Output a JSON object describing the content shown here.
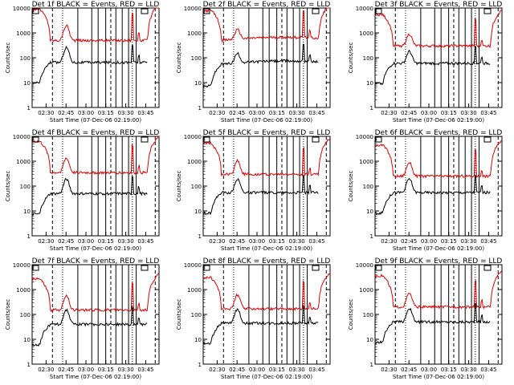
{
  "colors": {
    "events": "#000000",
    "lld": "#dd0000",
    "axes": "#000000"
  },
  "axis": {
    "ylabel": "Counts/sec",
    "xlabel": "Start Time (07-Dec-06 02:19:00)",
    "y_ticks": [
      "1",
      "10",
      "100",
      "1000",
      "10000"
    ],
    "x_ticks": [
      "02:30",
      "02:45",
      "03:00",
      "03:15",
      "03:30",
      "03:45"
    ]
  },
  "chart_data": [
    {
      "type": "line",
      "title": "Det 1f BLACK = Events, RED = LLD",
      "ylim": [
        1,
        10000
      ],
      "events_base": 65,
      "lld_base": 500,
      "peak": 3.0,
      "drift": 0.0
    },
    {
      "type": "line",
      "title": "Det 2f BLACK = Events, RED = LLD",
      "ylim": [
        1,
        10000
      ],
      "events_base": 55,
      "lld_base": 500,
      "peak": 1.4,
      "drift": 0.35
    },
    {
      "type": "line",
      "title": "Det 3f BLACK = Events, RED = LLD",
      "ylim": [
        1,
        10000
      ],
      "events_base": 60,
      "lld_base": 300,
      "peak": 2.0,
      "drift": 0.0
    },
    {
      "type": "line",
      "title": "Det 4f BLACK = Events, RED = LLD",
      "ylim": [
        1,
        10000
      ],
      "events_base": 50,
      "lld_base": 350,
      "peak": 2.8,
      "drift": 0.0
    },
    {
      "type": "line",
      "title": "Det 5f BLACK = Events, RED = LLD",
      "ylim": [
        1,
        10000
      ],
      "events_base": 55,
      "lld_base": 300,
      "peak": 2.5,
      "drift": 0.0
    },
    {
      "type": "line",
      "title": "Det 6f BLACK = Events, RED = LLD",
      "ylim": [
        1,
        10000
      ],
      "events_base": 55,
      "lld_base": 250,
      "peak": 2.6,
      "drift": 0.0
    },
    {
      "type": "line",
      "title": "Det 7f BLACK = Events, RED = LLD",
      "ylim": [
        1,
        10000
      ],
      "events_base": 40,
      "lld_base": 150,
      "peak": 2.8,
      "drift": 0.0
    },
    {
      "type": "line",
      "title": "Det 8f BLACK = Events, RED = LLD",
      "ylim": [
        1,
        10000
      ],
      "events_base": 45,
      "lld_base": 170,
      "peak": 2.6,
      "drift": 0.0
    },
    {
      "type": "line",
      "title": "Det 9f BLACK = Events, RED = LLD",
      "ylim": [
        1,
        10000
      ],
      "events_base": 50,
      "lld_base": 200,
      "peak": 2.5,
      "drift": 0.0
    }
  ]
}
